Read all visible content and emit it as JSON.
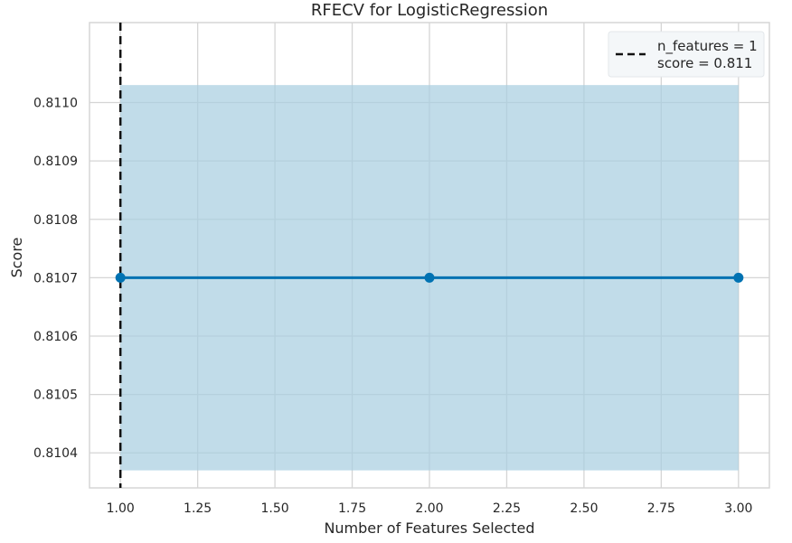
{
  "chart_data": {
    "type": "line",
    "title": "RFECV for LogisticRegression",
    "xlabel": "Number of Features Selected",
    "ylabel": "Score",
    "xlim": [
      0.9,
      3.1
    ],
    "ylim": [
      0.81034,
      0.811137
    ],
    "xticks": [
      1.0,
      1.25,
      1.5,
      1.75,
      2.0,
      2.25,
      2.5,
      2.75,
      3.0
    ],
    "xtick_labels": [
      "1.00",
      "1.25",
      "1.50",
      "1.75",
      "2.00",
      "2.25",
      "2.50",
      "2.75",
      "3.00"
    ],
    "yticks": [
      0.8104,
      0.8105,
      0.8106,
      0.8107,
      0.8108,
      0.8109,
      0.811
    ],
    "ytick_labels": [
      "0.8104",
      "0.8105",
      "0.8106",
      "0.8107",
      "0.8108",
      "0.8109",
      "0.8110"
    ],
    "grid": true,
    "series": [
      {
        "x": [
          1,
          2,
          3
        ],
        "y": [
          0.8107,
          0.8107,
          0.8107
        ],
        "color": "#0072B2"
      }
    ],
    "band": {
      "x": [
        1,
        3
      ],
      "lower": 0.81037,
      "upper": 0.81103,
      "color": "#A6CDE0",
      "opacity": 0.7
    },
    "vline": {
      "x": 1,
      "style": "dashed",
      "color": "#111111"
    },
    "legend": {
      "position": "top-right",
      "line1": "n_features = 1",
      "line2": "score = 0.811"
    }
  }
}
